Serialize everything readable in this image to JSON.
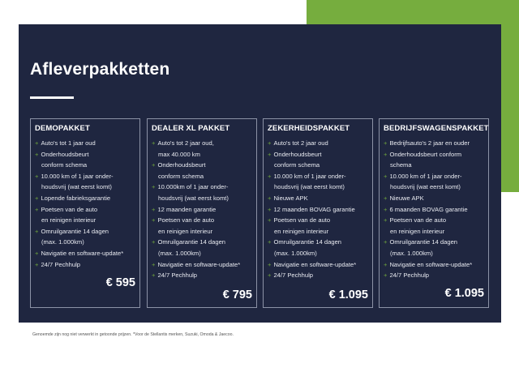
{
  "title": "Afleverpakketten",
  "colors": {
    "accent": "#76ad3e",
    "panel": "#1f2640"
  },
  "packages": [
    {
      "name": "DEMOPAKKET",
      "price": "€ 595",
      "items": [
        [
          "Auto's tot 1 jaar oud"
        ],
        [
          "Onderhoudsbeurt",
          "conform schema"
        ],
        [
          "10.000 km of 1 jaar onder-",
          "houdsvrij (wat eerst komt)"
        ],
        [
          "Lopende fabrieksgarantie"
        ],
        [
          "Poetsen van de auto",
          "en reinigen interieur"
        ],
        [
          "Omruilgarantie 14 dagen",
          "(max. 1.000km)"
        ],
        [
          "Navigatie en software-update*"
        ],
        [
          "24/7 Pechhulp"
        ]
      ]
    },
    {
      "name": "DEALER XL PAKKET",
      "price": "€ 795",
      "items": [
        [
          "Auto's tot 2 jaar oud,",
          "max 40.000 km"
        ],
        [
          "Onderhoudsbeurt",
          "conform schema"
        ],
        [
          "10.000km of 1 jaar onder-",
          "houdsvrij (wat eerst komt)"
        ],
        [
          "12 maanden garantie"
        ],
        [
          "Poetsen van de auto",
          "en reinigen interieur"
        ],
        [
          "Omruilgarantie 14 dagen",
          "(max. 1.000km)"
        ],
        [
          "Navigatie en software-update*"
        ],
        [
          "24/7 Pechhulp"
        ]
      ]
    },
    {
      "name": "ZEKERHEIDSPAKKET",
      "price": "€ 1.095",
      "items": [
        [
          "Auto's tot 2 jaar oud"
        ],
        [
          "Onderhoudsbeurt",
          "conform schema"
        ],
        [
          "10.000 km of 1 jaar onder-",
          "houdsvrij (wat eerst komt)"
        ],
        [
          "Nieuwe APK"
        ],
        [
          "12 maanden BOVAG garantie"
        ],
        [
          "Poetsen van de auto",
          "en reinigen interieur"
        ],
        [
          "Omruilgarantie 14 dagen",
          "(max. 1.000km)"
        ],
        [
          "Navigatie en software-update*"
        ],
        [
          "24/7 Pechhulp"
        ]
      ]
    },
    {
      "name": "BEDRIJFSWAGENSPAKKET",
      "price": "€ 1.095",
      "items": [
        [
          "Bedrijfsauto's 2 jaar en ouder"
        ],
        [
          "Onderhoudsbeurt conform",
          "schema"
        ],
        [
          "10.000 km of 1 jaar onder-",
          "houdsvrij (wat eerst komt)"
        ],
        [
          "Nieuwe APK"
        ],
        [
          "6 maanden BOVAG garantie"
        ],
        [
          "Poetsen van de auto",
          "en reinigen interieur"
        ],
        [
          "Omruilgarantie 14 dagen",
          "(max. 1.000km)"
        ],
        [
          "Navigatie en software-update*"
        ],
        [
          "24/7 Pechhulp"
        ]
      ]
    }
  ],
  "footnote": "Genoemde zijn nog niet verwerkt in getoonde prijzen. *Voor de Stellantis merken, Suzuki, Omoda & Jaecoo."
}
